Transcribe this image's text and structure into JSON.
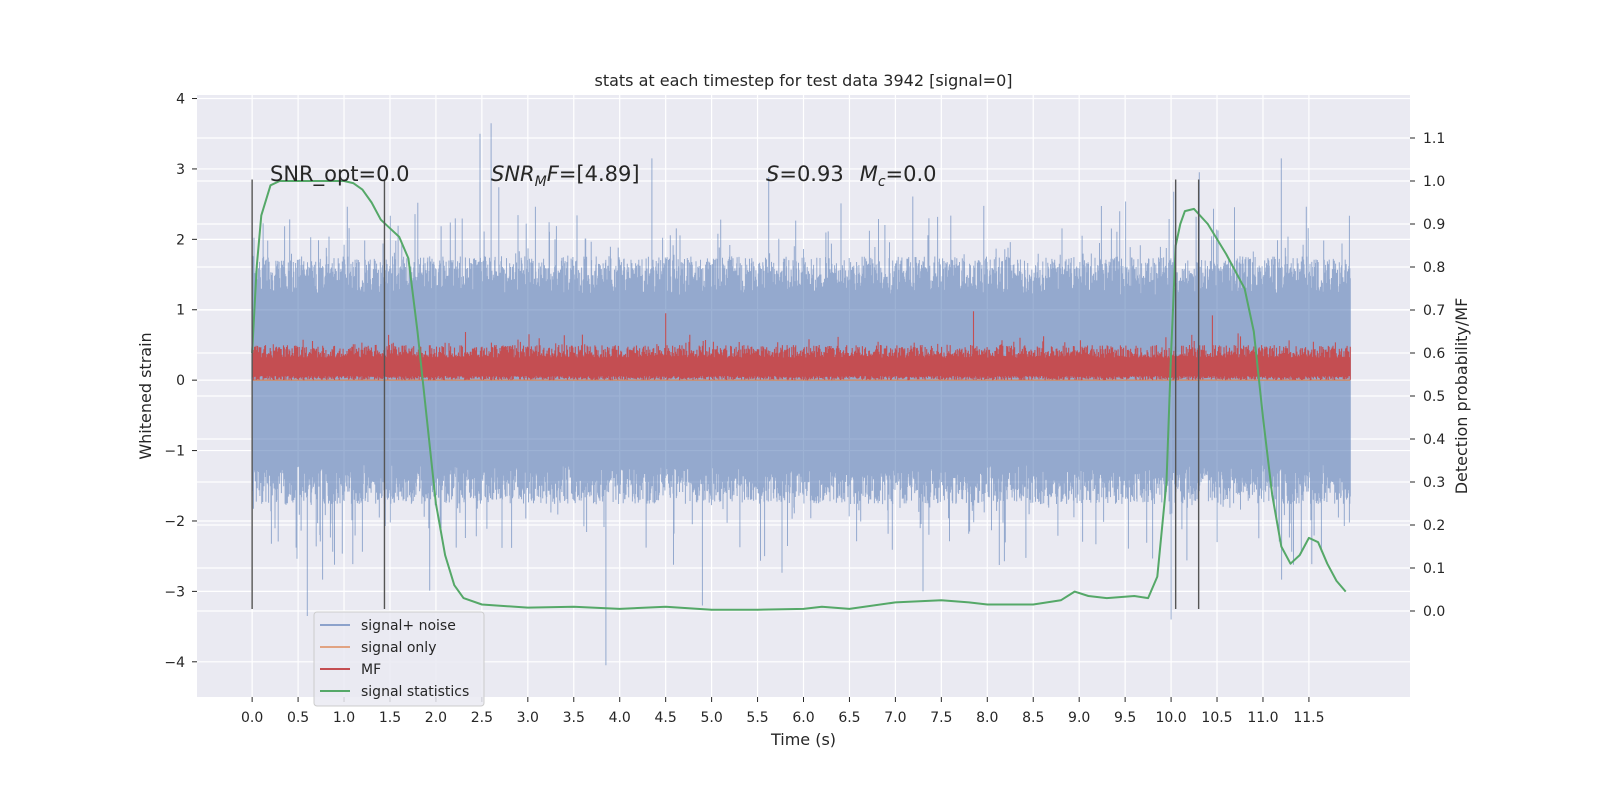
{
  "chart_data": {
    "type": "line",
    "title": "stats at each timestep for test data 3942 [signal=0]",
    "xlabel": "Time (s)",
    "ylabel": "Whitened strain",
    "y2label": "Detection probability/MF",
    "xlim": [
      -0.6,
      12.6
    ],
    "ylim": [
      -4.5,
      4.05
    ],
    "y2lim": [
      -0.2,
      1.2
    ],
    "x_ticks": [
      0.0,
      0.5,
      1.0,
      1.5,
      2.0,
      2.5,
      3.0,
      3.5,
      4.0,
      4.5,
      5.0,
      5.5,
      6.0,
      6.5,
      7.0,
      7.5,
      8.0,
      8.5,
      9.0,
      9.5,
      10.0,
      10.5,
      11.0,
      11.5
    ],
    "x_tick_labels": [
      "0.0",
      "0.5",
      "1.0",
      "1.5",
      "2.0",
      "2.5",
      "3.0",
      "3.5",
      "4.0",
      "4.5",
      "5.0",
      "5.5",
      "6.0",
      "6.5",
      "7.0",
      "7.5",
      "8.0",
      "8.5",
      "9.0",
      "9.5",
      "10.0",
      "10.5",
      "11.0",
      "11.5"
    ],
    "y_ticks": [
      -4,
      -3,
      -2,
      -1,
      0,
      1,
      2,
      3,
      4
    ],
    "y_tick_labels": [
      "−4",
      "−3",
      "−2",
      "−1",
      "0",
      "1",
      "2",
      "3",
      "4"
    ],
    "y2_ticks": [
      0.0,
      0.1,
      0.2,
      0.3,
      0.4,
      0.5,
      0.6,
      0.7,
      0.8,
      0.9,
      1.0,
      1.1
    ],
    "y2_tick_labels": [
      "0.0",
      "0.1",
      "0.2",
      "0.3",
      "0.4",
      "0.5",
      "0.6",
      "0.7",
      "0.8",
      "0.9",
      "1.0",
      "1.1"
    ],
    "grid": true,
    "legend_position": "lower-left",
    "annotations": {
      "snr_opt": "SNR_opt=0.0",
      "snr_mf": "SNR_MF=[4.89]",
      "s_mc": "S=0.93   M_c=0.0"
    },
    "vertical_markers": [
      0.0,
      1.44,
      10.05,
      10.3
    ],
    "series": [
      {
        "name": "signal+ noise",
        "color": "#4c72b0",
        "opacity": 0.5,
        "x_range": [
          0.0,
          11.95
        ],
        "typical_band": [
          -1.6,
          1.6
        ],
        "peaks": [
          {
            "x": 2.6,
            "y": 3.65
          },
          {
            "x": 2.48,
            "y": 3.5
          },
          {
            "x": 3.85,
            "y": -4.05
          },
          {
            "x": 0.6,
            "y": -3.35
          },
          {
            "x": 10.0,
            "y": -3.4
          },
          {
            "x": 4.35,
            "y": 3.15
          },
          {
            "x": 11.2,
            "y": 3.15
          },
          {
            "x": 4.9,
            "y": -3.2
          },
          {
            "x": 7.3,
            "y": -3.0
          },
          {
            "x": 0.05,
            "y": 1.2
          }
        ]
      },
      {
        "name": "signal only",
        "color": "#dd8452",
        "values_approx": 0.0
      },
      {
        "name": "MF",
        "color": "#c44e52",
        "x_range": [
          0.0,
          11.95
        ],
        "typical_band": [
          0.0,
          0.5
        ],
        "peaks": [
          {
            "x": 4.5,
            "y": 0.95
          },
          {
            "x": 7.85,
            "y": 0.98
          },
          {
            "x": 10.45,
            "y": 0.92
          }
        ]
      },
      {
        "name": "signal statistics",
        "color": "#55a868",
        "axis": "y2",
        "x": [
          0.0,
          0.05,
          0.1,
          0.2,
          0.3,
          0.5,
          0.8,
          1.0,
          1.1,
          1.2,
          1.3,
          1.4,
          1.5,
          1.6,
          1.7,
          1.8,
          1.9,
          2.0,
          2.1,
          2.2,
          2.3,
          2.5,
          3.0,
          3.5,
          4.0,
          4.5,
          5.0,
          5.5,
          6.0,
          6.2,
          6.5,
          7.0,
          7.5,
          7.8,
          8.0,
          8.5,
          8.8,
          8.95,
          9.1,
          9.3,
          9.6,
          9.75,
          9.85,
          9.95,
          10.0,
          10.05,
          10.1,
          10.15,
          10.25,
          10.4,
          10.6,
          10.8,
          10.9,
          11.0,
          11.1,
          11.2,
          11.3,
          11.4,
          11.5,
          11.6,
          11.7,
          11.8,
          11.9
        ],
        "y": [
          0.6,
          0.8,
          0.92,
          0.99,
          1.0,
          1.0,
          1.0,
          1.0,
          0.995,
          0.98,
          0.95,
          0.91,
          0.89,
          0.87,
          0.82,
          0.65,
          0.45,
          0.25,
          0.13,
          0.06,
          0.03,
          0.015,
          0.008,
          0.01,
          0.005,
          0.01,
          0.003,
          0.003,
          0.005,
          0.01,
          0.005,
          0.02,
          0.025,
          0.02,
          0.015,
          0.015,
          0.025,
          0.045,
          0.035,
          0.03,
          0.035,
          0.03,
          0.08,
          0.3,
          0.6,
          0.85,
          0.9,
          0.93,
          0.935,
          0.9,
          0.83,
          0.75,
          0.65,
          0.45,
          0.27,
          0.15,
          0.11,
          0.13,
          0.17,
          0.16,
          0.11,
          0.07,
          0.045
        ]
      }
    ]
  },
  "colors": {
    "plot_background": "#eaeaf2",
    "grid": "#ffffff",
    "marker_line": "#555555"
  }
}
